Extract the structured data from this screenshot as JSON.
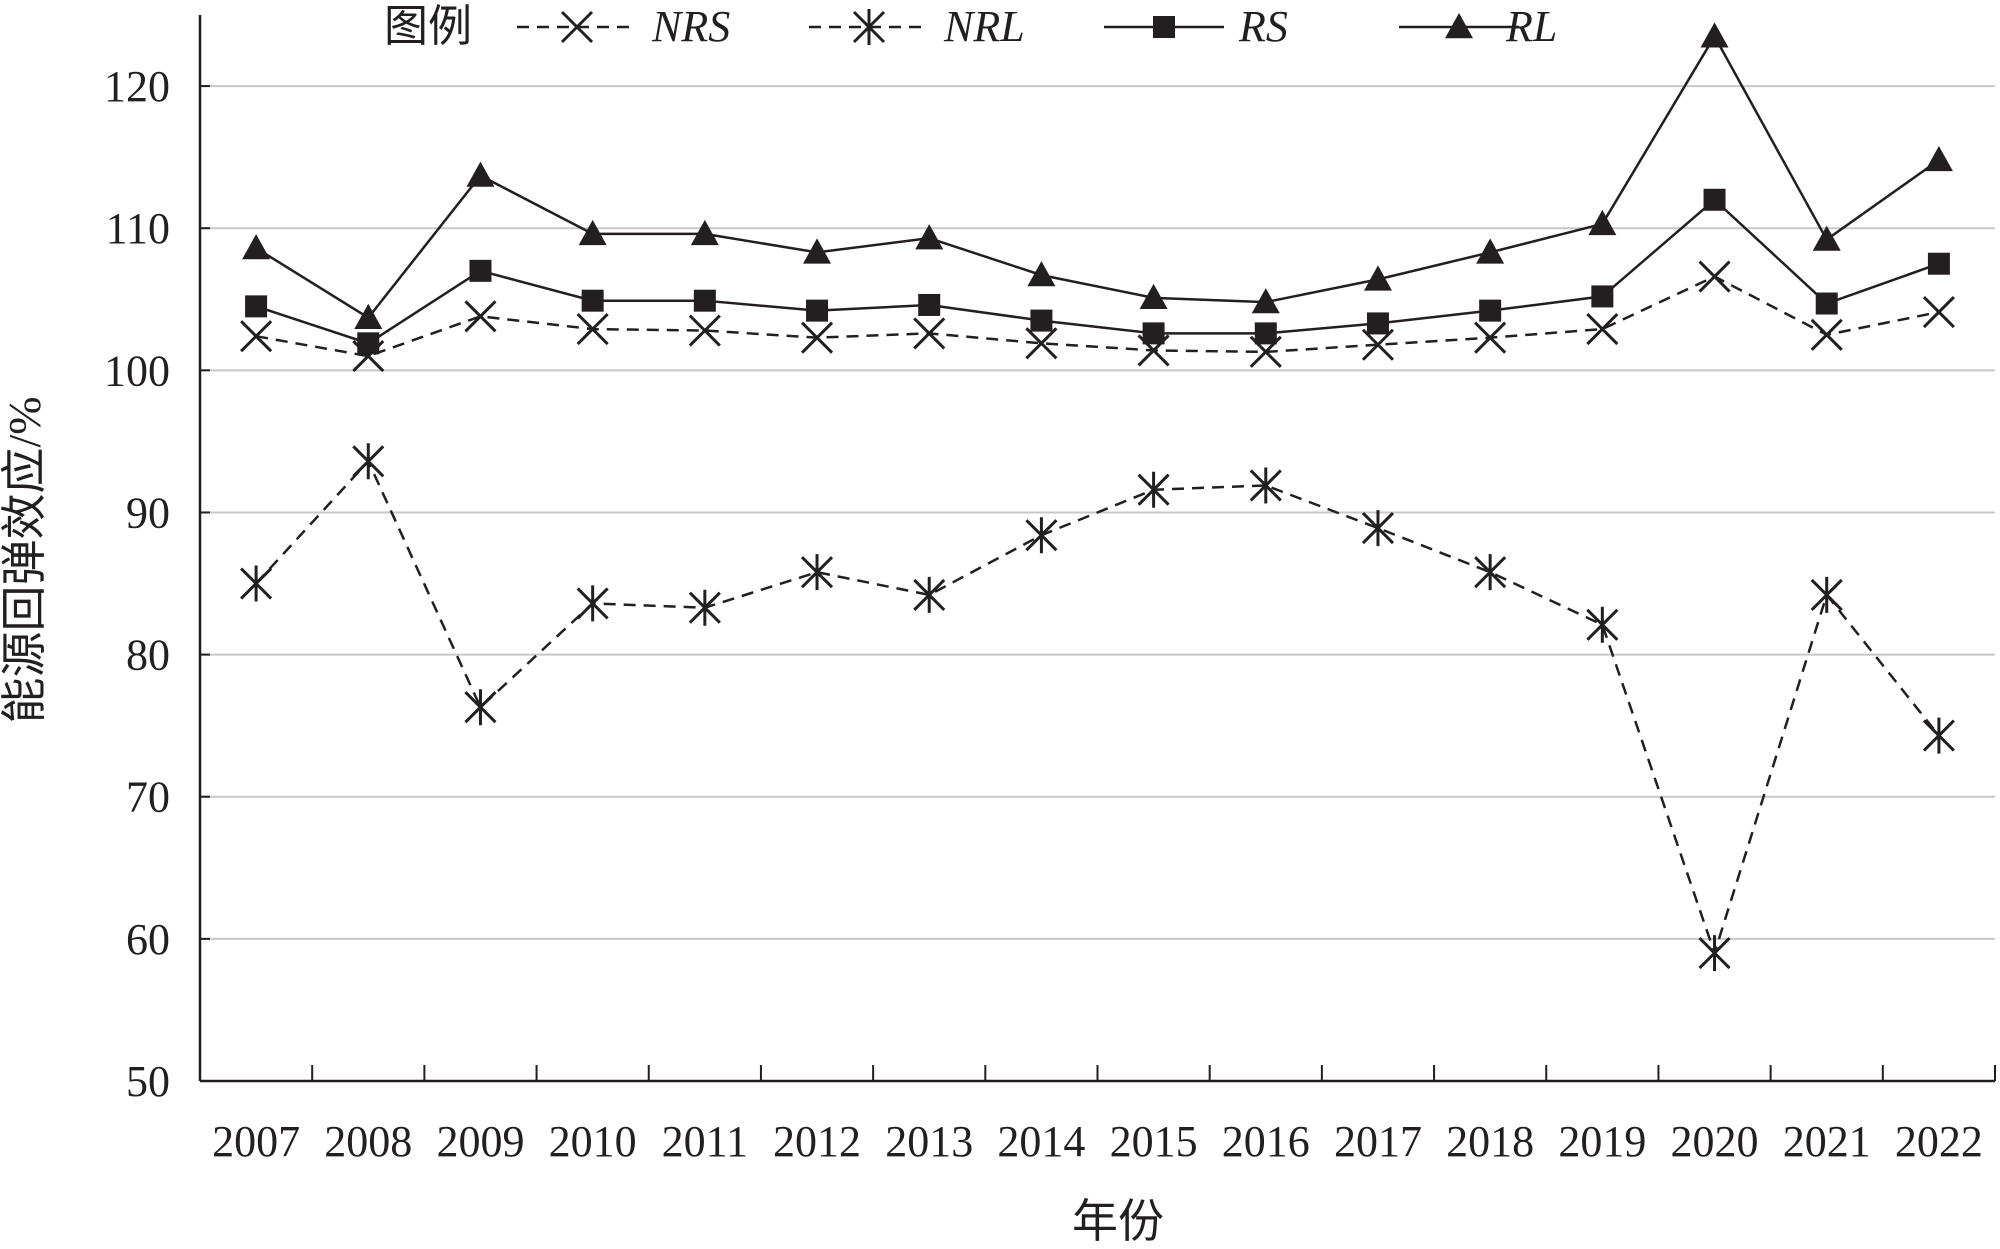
{
  "chart_data": {
    "type": "line",
    "xlabel": "年份",
    "ylabel": "能源回弹效应/%",
    "ylim": [
      50,
      125
    ],
    "yticks": [
      50,
      60,
      70,
      80,
      90,
      100,
      110,
      120
    ],
    "categories": [
      "2007",
      "2008",
      "2009",
      "2010",
      "2011",
      "2012",
      "2013",
      "2014",
      "2015",
      "2016",
      "2017",
      "2018",
      "2019",
      "2020",
      "2021",
      "2022"
    ],
    "grid": "horizontal",
    "legend": {
      "title": "图例",
      "placement": "top"
    },
    "series": [
      {
        "name": "NRS",
        "marker": "x",
        "line": "dashed",
        "values": [
          102.4,
          101.0,
          103.8,
          102.9,
          102.8,
          102.3,
          102.6,
          101.9,
          101.4,
          101.3,
          101.8,
          102.3,
          102.9,
          106.6,
          102.5,
          104.1
        ]
      },
      {
        "name": "NRL",
        "marker": "asterisk",
        "line": "dashed",
        "values": [
          85.0,
          93.6,
          76.3,
          83.6,
          83.3,
          85.8,
          84.2,
          88.4,
          91.6,
          91.9,
          88.9,
          85.8,
          82.1,
          59.0,
          84.2,
          74.3
        ]
      },
      {
        "name": "RS",
        "marker": "square",
        "line": "solid",
        "values": [
          104.5,
          101.9,
          107.0,
          104.9,
          104.9,
          104.2,
          104.6,
          103.5,
          102.6,
          102.6,
          103.3,
          104.2,
          105.2,
          112.0,
          104.7,
          107.5
        ]
      },
      {
        "name": "RL",
        "marker": "triangle",
        "line": "solid",
        "values": [
          108.6,
          103.7,
          113.7,
          109.6,
          109.6,
          108.3,
          109.3,
          106.7,
          105.1,
          104.8,
          106.4,
          108.3,
          110.3,
          123.5,
          109.2,
          114.8
        ]
      }
    ]
  }
}
